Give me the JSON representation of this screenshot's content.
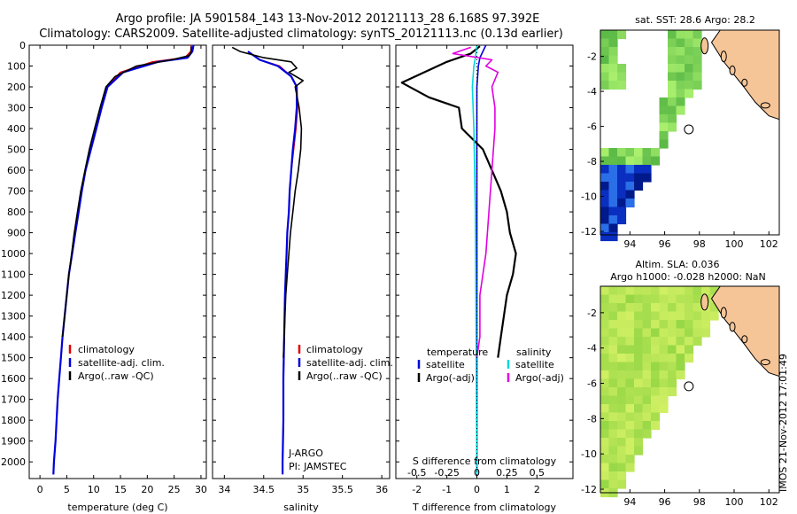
{
  "figure": {
    "title_line1": "Argo profile: JA 5901584_143 13-Nov-2012 20121113_28 6.168S 97.392E",
    "title_line2": "Climatology: CARS2009. Satellite-adjusted climatology: synTS_20121113.nc (0.13d earlier)",
    "credit": "IMOS 21-Nov-2012 17:01:49",
    "colors": {
      "climatology": "#e00000",
      "satellite": "#0000dd",
      "argo": "#000000",
      "sat_salinity": "#00d8e0",
      "argo_salinity": "#e000e0"
    }
  },
  "chart_data": [
    {
      "id": "temperature",
      "type": "line",
      "xlabel": "temperature (deg C)",
      "ylabel": "",
      "xlim": [
        -2,
        31
      ],
      "ylim": [
        2080,
        0
      ],
      "xticks": [
        0,
        5,
        10,
        15,
        20,
        25,
        30
      ],
      "yticks": [
        0,
        100,
        200,
        300,
        400,
        500,
        600,
        700,
        800,
        900,
        1000,
        1100,
        1200,
        1300,
        1400,
        1500,
        1600,
        1700,
        1800,
        1900,
        2000
      ],
      "legend": [
        "climatology",
        "satellite-adj. clim.",
        "Argo(..raw -QC)"
      ],
      "series": [
        {
          "name": "climatology",
          "color": "#e00000",
          "points": [
            [
              28.2,
              0
            ],
            [
              28.1,
              30
            ],
            [
              27.0,
              60
            ],
            [
              21.0,
              80
            ],
            [
              15.0,
              130
            ],
            [
              12.5,
              200
            ],
            [
              11.5,
              300
            ],
            [
              10.5,
              400
            ],
            [
              9.5,
              500
            ],
            [
              8.5,
              600
            ],
            [
              7.8,
              700
            ],
            [
              7.2,
              800
            ],
            [
              6.6,
              900
            ],
            [
              6.0,
              1000
            ],
            [
              5.4,
              1100
            ],
            [
              5.0,
              1200
            ],
            [
              4.6,
              1300
            ],
            [
              4.2,
              1400
            ],
            [
              3.9,
              1500
            ],
            [
              3.6,
              1600
            ],
            [
              3.3,
              1700
            ],
            [
              3.1,
              1800
            ],
            [
              2.9,
              1900
            ],
            [
              2.6,
              2000
            ],
            [
              2.5,
              2060
            ]
          ]
        },
        {
          "name": "satellite-adj. clim.",
          "color": "#0000dd",
          "points": [
            [
              28.6,
              0
            ],
            [
              28.4,
              30
            ],
            [
              27.5,
              60
            ],
            [
              22.0,
              80
            ],
            [
              15.5,
              130
            ],
            [
              12.6,
              200
            ],
            [
              11.5,
              300
            ],
            [
              10.5,
              400
            ],
            [
              9.5,
              500
            ],
            [
              8.5,
              600
            ],
            [
              7.8,
              700
            ],
            [
              7.2,
              800
            ],
            [
              6.6,
              900
            ],
            [
              6.0,
              1000
            ],
            [
              5.4,
              1100
            ],
            [
              5.0,
              1200
            ],
            [
              4.6,
              1300
            ],
            [
              4.2,
              1400
            ],
            [
              3.9,
              1500
            ],
            [
              3.6,
              1600
            ],
            [
              3.3,
              1700
            ],
            [
              3.1,
              1800
            ],
            [
              2.9,
              1900
            ],
            [
              2.6,
              2000
            ],
            [
              2.5,
              2060
            ]
          ]
        },
        {
          "name": "Argo(..raw -QC)",
          "color": "#000000",
          "points": [
            [
              28.2,
              5
            ],
            [
              28.2,
              30
            ],
            [
              27.8,
              50
            ],
            [
              24.5,
              70
            ],
            [
              18.0,
              100
            ],
            [
              14.0,
              150
            ],
            [
              12.3,
              200
            ],
            [
              11.2,
              300
            ],
            [
              10.2,
              400
            ],
            [
              9.2,
              500
            ],
            [
              8.4,
              600
            ],
            [
              7.6,
              700
            ],
            [
              7.0,
              800
            ],
            [
              6.4,
              900
            ],
            [
              5.9,
              1000
            ],
            [
              5.4,
              1100
            ],
            [
              5.0,
              1200
            ],
            [
              4.6,
              1300
            ],
            [
              4.2,
              1400
            ]
          ]
        }
      ]
    },
    {
      "id": "salinity",
      "type": "line",
      "xlabel": "salinity",
      "ylabel": "",
      "xlim": [
        33.85,
        36.1
      ],
      "ylim": [
        2080,
        0
      ],
      "xticks": [
        34,
        34.5,
        35,
        35.5,
        36
      ],
      "legend": [
        "climatology",
        "satellite-adj. clim.",
        "Argo(..raw -QC)"
      ],
      "annotations": [
        "J-ARGO",
        "PI: JAMSTEC"
      ],
      "series": [
        {
          "name": "climatology",
          "color": "#e00000",
          "points": [
            [
              34.3,
              30
            ],
            [
              34.45,
              70
            ],
            [
              34.7,
              100
            ],
            [
              34.85,
              150
            ],
            [
              34.92,
              200
            ],
            [
              34.93,
              300
            ],
            [
              34.91,
              400
            ],
            [
              34.88,
              500
            ],
            [
              34.85,
              600
            ],
            [
              34.83,
              700
            ],
            [
              34.82,
              800
            ],
            [
              34.8,
              900
            ],
            [
              34.79,
              1000
            ],
            [
              34.78,
              1100
            ],
            [
              34.77,
              1200
            ],
            [
              34.76,
              1400
            ],
            [
              34.75,
              1600
            ],
            [
              34.75,
              1800
            ],
            [
              34.74,
              2000
            ],
            [
              34.74,
              2060
            ]
          ]
        },
        {
          "name": "satellite-adj. clim.",
          "color": "#0000dd",
          "points": [
            [
              34.3,
              30
            ],
            [
              34.45,
              70
            ],
            [
              34.68,
              100
            ],
            [
              34.85,
              150
            ],
            [
              34.92,
              200
            ],
            [
              34.92,
              300
            ],
            [
              34.9,
              400
            ],
            [
              34.87,
              500
            ],
            [
              34.85,
              600
            ],
            [
              34.83,
              700
            ],
            [
              34.82,
              800
            ],
            [
              34.8,
              900
            ],
            [
              34.79,
              1000
            ],
            [
              34.78,
              1100
            ],
            [
              34.77,
              1200
            ],
            [
              34.76,
              1400
            ],
            [
              34.75,
              1600
            ],
            [
              34.75,
              1800
            ],
            [
              34.74,
              2000
            ],
            [
              34.74,
              2060
            ]
          ]
        },
        {
          "name": "Argo(..raw -QC)",
          "color": "#000000",
          "points": [
            [
              34.1,
              10
            ],
            [
              34.2,
              30
            ],
            [
              34.5,
              60
            ],
            [
              34.85,
              80
            ],
            [
              34.92,
              110
            ],
            [
              34.82,
              130
            ],
            [
              35.0,
              170
            ],
            [
              34.9,
              200
            ],
            [
              34.95,
              300
            ],
            [
              34.98,
              400
            ],
            [
              34.97,
              500
            ],
            [
              34.94,
              600
            ],
            [
              34.9,
              700
            ],
            [
              34.87,
              800
            ],
            [
              34.84,
              900
            ],
            [
              34.82,
              1000
            ],
            [
              34.8,
              1100
            ],
            [
              34.78,
              1200
            ],
            [
              34.77,
              1300
            ],
            [
              34.76,
              1400
            ],
            [
              34.75,
              1500
            ]
          ]
        }
      ]
    },
    {
      "id": "difference",
      "type": "line",
      "xlabel": "T difference from climatology",
      "xlabel2": "S difference from climatology",
      "xlim": [
        -2.7,
        3.2
      ],
      "ylim": [
        2080,
        0
      ],
      "xticks": [
        -2,
        -1,
        0,
        1,
        2
      ],
      "xticks2": [
        -0.5,
        -0.25,
        0,
        0.25,
        0.5
      ],
      "xtick2_labels": [
        "-0.5",
        "-0.25",
        "0",
        "0.25",
        "0.5"
      ],
      "legend_headers": [
        "temperature",
        "salinity"
      ],
      "legend": [
        "satellite",
        "Argo(-adj)",
        "satellite",
        "Argo(-adj)"
      ],
      "series": [
        {
          "name": "satellite",
          "color": "#0000dd",
          "points": [
            [
              0.3,
              0
            ],
            [
              0.2,
              30
            ],
            [
              0.1,
              60
            ],
            [
              0.05,
              100
            ],
            [
              0,
              200
            ],
            [
              0,
              400
            ],
            [
              0,
              2060
            ]
          ]
        },
        {
          "name": "Argo(-adj)",
          "color": "#000000",
          "points": [
            [
              0.1,
              5
            ],
            [
              -0.2,
              40
            ],
            [
              -1.0,
              80
            ],
            [
              -2.5,
              180
            ],
            [
              -1.6,
              250
            ],
            [
              -0.6,
              300
            ],
            [
              -0.5,
              400
            ],
            [
              0.2,
              500
            ],
            [
              0.5,
              600
            ],
            [
              0.8,
              700
            ],
            [
              1.0,
              800
            ],
            [
              1.1,
              900
            ],
            [
              1.3,
              1000
            ],
            [
              1.2,
              1100
            ],
            [
              1.0,
              1200
            ],
            [
              0.9,
              1300
            ],
            [
              0.8,
              1400
            ],
            [
              0.7,
              1500
            ]
          ]
        },
        {
          "name": "satellite",
          "color": "#00d8e0",
          "points": [
            [
              0.0,
              0
            ],
            [
              -0.05,
              60
            ],
            [
              -0.1,
              100
            ],
            [
              -0.15,
              200
            ],
            [
              -0.1,
              400
            ],
            [
              -0.05,
              800
            ],
            [
              0,
              2060
            ]
          ]
        },
        {
          "name": "Argo(-adj)",
          "color": "#e000e0",
          "points": [
            [
              -0.2,
              10
            ],
            [
              -0.8,
              40
            ],
            [
              0.5,
              70
            ],
            [
              0.3,
              100
            ],
            [
              0.7,
              130
            ],
            [
              0.5,
              200
            ],
            [
              0.6,
              300
            ],
            [
              0.6,
              400
            ],
            [
              0.5,
              600
            ],
            [
              0.4,
              800
            ],
            [
              0.3,
              1000
            ],
            [
              0.1,
              1200
            ],
            [
              0.1,
              1400
            ],
            [
              0.0,
              1500
            ]
          ]
        }
      ]
    },
    {
      "id": "map-sst",
      "type": "heatmap",
      "title": "sat. SST: 28.6 Argo: 28.2",
      "xlim": [
        92.3,
        102.6
      ],
      "ylim": [
        -12.2,
        -0.5
      ],
      "xticks": [
        94,
        96,
        98,
        100,
        102
      ],
      "yticks": [
        -2,
        -4,
        -6,
        -8,
        -10,
        -12
      ],
      "marker": [
        97.39,
        -6.17
      ]
    },
    {
      "id": "map-sla",
      "type": "heatmap",
      "title": "Altim. SLA: 0.036",
      "subtitle": "Argo h1000: -0.028 h2000: NaN",
      "xlim": [
        92.3,
        102.6
      ],
      "ylim": [
        -12.2,
        -0.5
      ],
      "xticks": [
        94,
        96,
        98,
        100,
        102
      ],
      "yticks": [
        -2,
        -4,
        -6,
        -8,
        -10,
        -12
      ],
      "marker": [
        97.39,
        -6.17
      ]
    }
  ]
}
